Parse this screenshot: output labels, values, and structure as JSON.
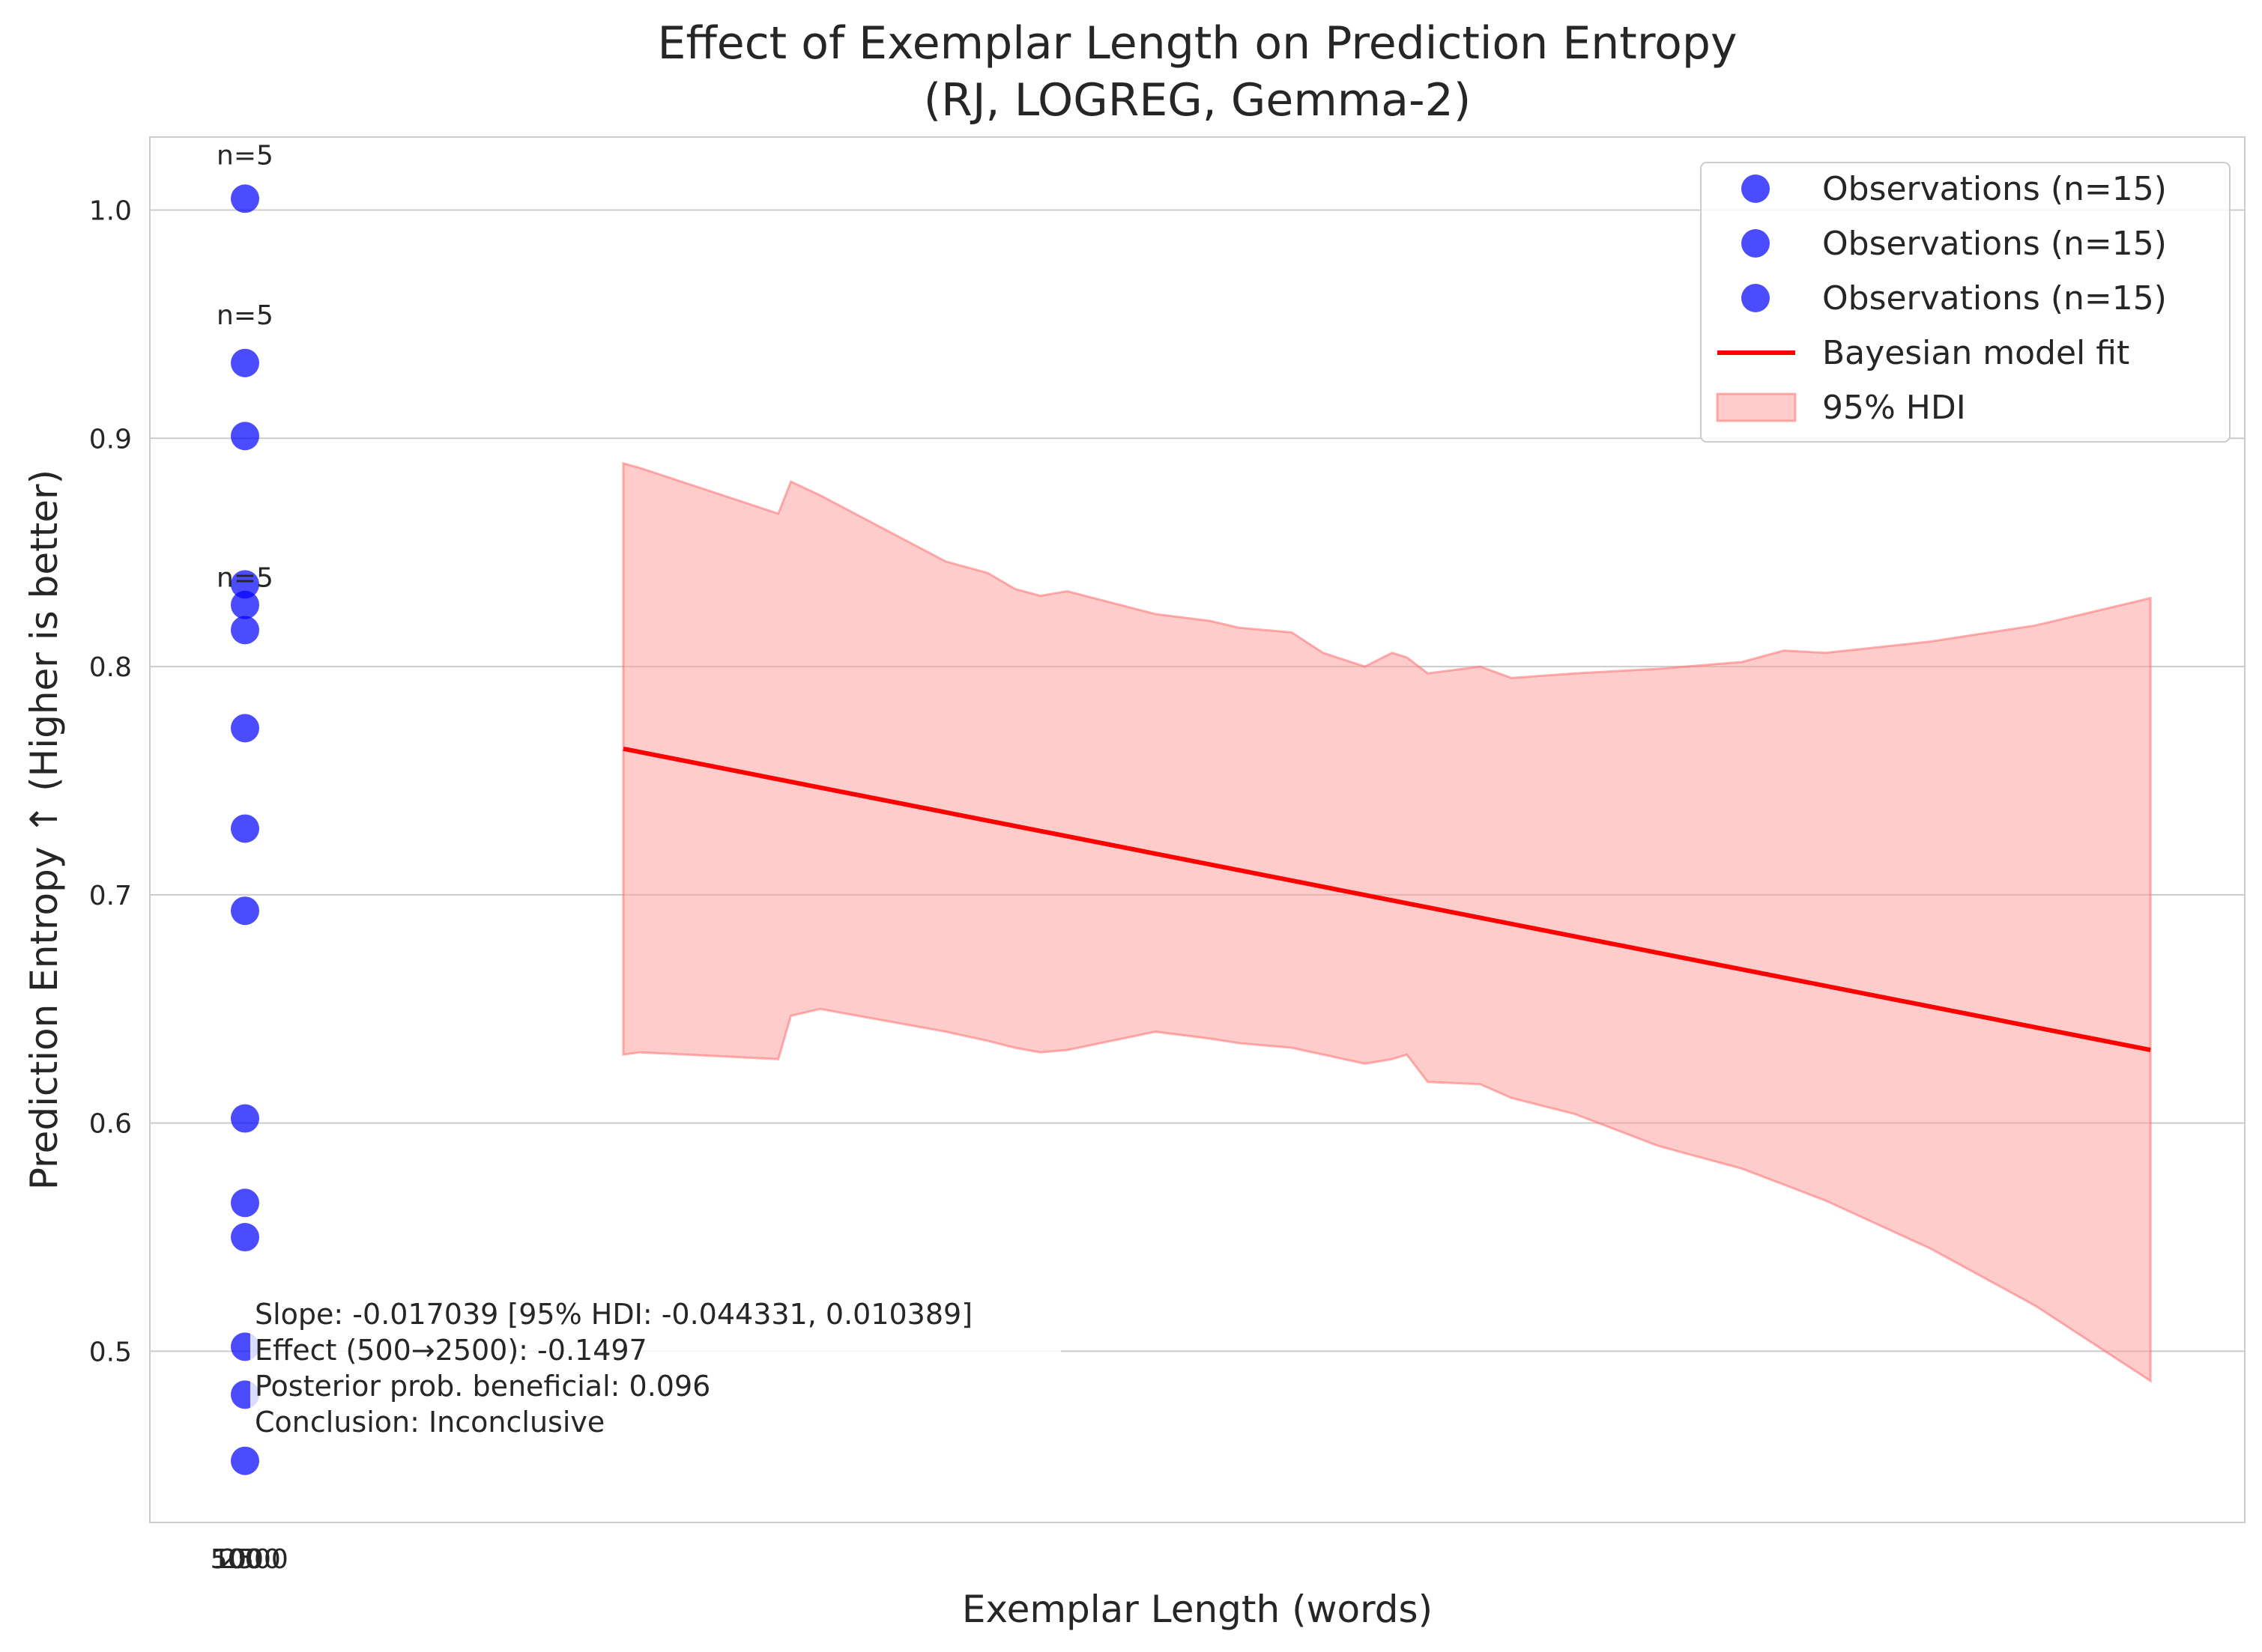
{
  "chart_data": {
    "type": "scatter",
    "title": "Effect of Exemplar Length on Prediction Entropy",
    "subtitle": "(RJ, LOGREG, Gemma-2)",
    "xlabel": "Exemplar Length (words)",
    "ylabel": "Prediction Entropy ↑ (Higher is better)",
    "grid": true,
    "legend_position": "top-right",
    "ylim": [
      0.425,
      1.032
    ],
    "y_ticks": [
      0.5,
      0.6,
      0.7,
      0.8,
      0.9,
      1.0
    ],
    "y_tick_labels": [
      "0.5",
      "0.6",
      "0.7",
      "0.8",
      "0.9",
      "1.0"
    ],
    "x_tick_labels": [
      "500",
      "1000",
      "2500"
    ],
    "colors": {
      "points": "#0000ff",
      "fit": "#ff0000",
      "band": "#ff9999"
    },
    "scatter_series": [
      {
        "label": "Observations (n=15)",
        "x": [
          500,
          500,
          500,
          500,
          500
        ],
        "y": [
          1.005,
          0.933,
          0.901,
          0.836,
          0.827
        ]
      },
      {
        "label": "Observations (n=15)",
        "x": [
          500,
          500,
          500,
          500,
          500
        ],
        "y": [
          0.816,
          0.773,
          0.729,
          0.693,
          0.602
        ]
      },
      {
        "label": "Observations (n=15)",
        "x": [
          500,
          500,
          500,
          500,
          500
        ],
        "y": [
          0.565,
          0.55,
          0.502,
          0.481,
          0.452
        ]
      }
    ],
    "group_labels": [
      {
        "text": "n=5",
        "y": 1.02
      },
      {
        "text": "n=5",
        "y": 0.95
      },
      {
        "text": "n=5",
        "y": 0.835
      }
    ],
    "fit": {
      "label": "Bayesian model fit",
      "x_span": [
        0.226,
        0.955
      ],
      "y": [
        0.764,
        0.632
      ]
    },
    "hdi": {
      "label": "95% HDI",
      "points": [
        [
          0.226,
          0.63,
          0.889
        ],
        [
          0.234,
          0.631,
          0.887
        ],
        [
          0.3,
          0.628,
          0.867
        ],
        [
          0.306,
          0.647,
          0.881
        ],
        [
          0.32,
          0.65,
          0.875
        ],
        [
          0.38,
          0.64,
          0.846
        ],
        [
          0.4,
          0.636,
          0.841
        ],
        [
          0.413,
          0.633,
          0.834
        ],
        [
          0.425,
          0.631,
          0.831
        ],
        [
          0.438,
          0.632,
          0.833
        ],
        [
          0.48,
          0.64,
          0.823
        ],
        [
          0.506,
          0.637,
          0.82
        ],
        [
          0.52,
          0.635,
          0.817
        ],
        [
          0.545,
          0.633,
          0.815
        ],
        [
          0.56,
          0.63,
          0.806
        ],
        [
          0.58,
          0.626,
          0.8
        ],
        [
          0.593,
          0.628,
          0.806
        ],
        [
          0.6,
          0.63,
          0.804
        ],
        [
          0.61,
          0.618,
          0.797
        ],
        [
          0.635,
          0.617,
          0.8
        ],
        [
          0.65,
          0.611,
          0.795
        ],
        [
          0.68,
          0.604,
          0.797
        ],
        [
          0.72,
          0.59,
          0.799
        ],
        [
          0.76,
          0.58,
          0.802
        ],
        [
          0.78,
          0.573,
          0.807
        ],
        [
          0.8,
          0.566,
          0.806
        ],
        [
          0.85,
          0.545,
          0.811
        ],
        [
          0.9,
          0.52,
          0.818
        ],
        [
          0.955,
          0.487,
          0.83
        ]
      ]
    },
    "annotation": [
      "Slope: -0.017039 [95% HDI: -0.044331, 0.010389]",
      "Effect (500→2500): -0.1497",
      "Posterior prob. beneficial: 0.096",
      "Conclusion: Inconclusive"
    ]
  }
}
